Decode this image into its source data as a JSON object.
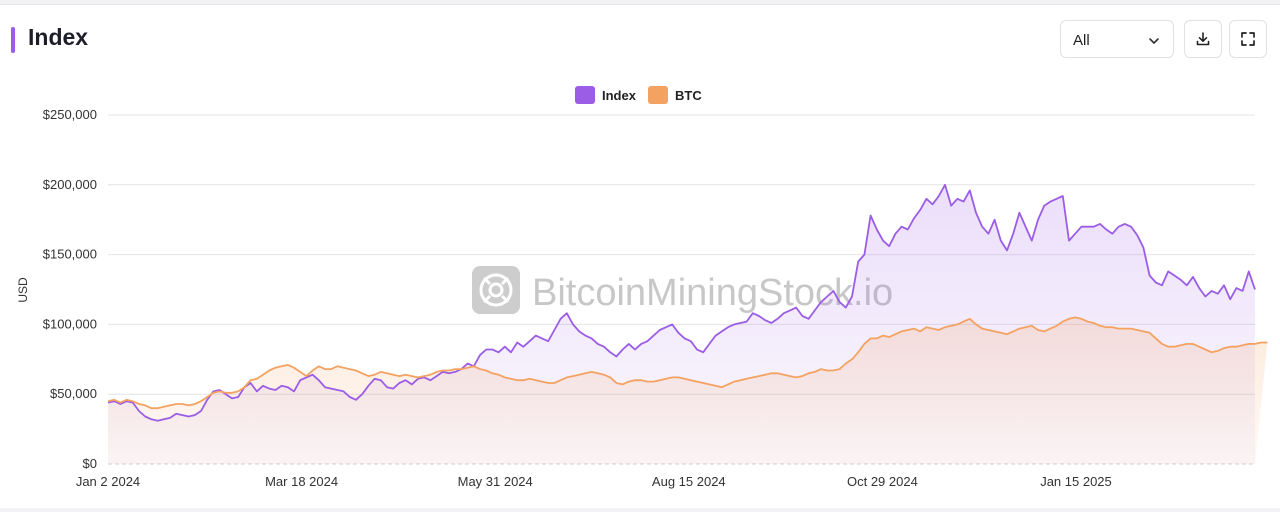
{
  "header": {
    "title": "Index",
    "range_value": "All",
    "accent": "#9b5de5",
    "download_icon": "download-icon",
    "fullscreen_icon": "fullscreen-icon",
    "dropdown_icon": "chevron-down-icon"
  },
  "watermark": {
    "text": "BitcoinMiningStock.io",
    "icon": "mining-logo-icon"
  },
  "chart_data": {
    "type": "line",
    "ylabel": "USD",
    "ylim": [
      0,
      250000
    ],
    "yticks": [
      0,
      50000,
      100000,
      150000,
      200000,
      250000
    ],
    "ytick_labels": [
      "$0",
      "$50,000",
      "$100,000",
      "$150,000",
      "$200,000",
      "$250,000"
    ],
    "xtick_labels": [
      "Jan 2 2024",
      "Mar 18 2024",
      "May 31 2024",
      "Aug 15 2024",
      "Oct 29 2024",
      "Jan 15 2025"
    ],
    "grid": true,
    "legend_position": "top-center",
    "series": [
      {
        "name": "Index",
        "color": "#9b5de5",
        "values": [
          44000,
          45000,
          43000,
          45000,
          44000,
          38000,
          34000,
          32000,
          31000,
          32000,
          33000,
          36000,
          35000,
          34000,
          35000,
          38000,
          46000,
          52000,
          53000,
          50000,
          47000,
          48000,
          55000,
          58000,
          52000,
          56000,
          54000,
          53000,
          56000,
          55000,
          52000,
          60000,
          62000,
          64000,
          60000,
          55000,
          54000,
          53000,
          52000,
          48000,
          46000,
          50000,
          56000,
          61000,
          60000,
          55000,
          54000,
          58000,
          60000,
          57000,
          61000,
          62000,
          60000,
          63000,
          66000,
          65000,
          66000,
          68000,
          72000,
          70000,
          78000,
          82000,
          82000,
          80000,
          84000,
          80000,
          87000,
          84000,
          88000,
          92000,
          90000,
          88000,
          96000,
          104000,
          108000,
          100000,
          95000,
          92000,
          90000,
          86000,
          84000,
          80000,
          77000,
          82000,
          86000,
          82000,
          86000,
          88000,
          92000,
          96000,
          98000,
          100000,
          94000,
          90000,
          88000,
          82000,
          80000,
          86000,
          92000,
          95000,
          98000,
          100000,
          101000,
          102000,
          108000,
          106000,
          103000,
          101000,
          104000,
          108000,
          110000,
          112000,
          106000,
          104000,
          110000,
          116000,
          120000,
          124000,
          116000,
          112000,
          120000,
          145000,
          150000,
          178000,
          168000,
          160000,
          156000,
          165000,
          170000,
          168000,
          176000,
          182000,
          190000,
          186000,
          192000,
          200000,
          185000,
          190000,
          188000,
          196000,
          180000,
          170000,
          165000,
          175000,
          160000,
          153000,
          165000,
          180000,
          170000,
          160000,
          175000,
          185000,
          188000,
          190000,
          192000,
          160000,
          165000,
          170000,
          170000,
          170000,
          172000,
          168000,
          165000,
          170000,
          172000,
          170000,
          164000,
          155000,
          135000,
          130000,
          128000,
          138000,
          135000,
          132000,
          128000,
          134000,
          126000,
          120000,
          124000,
          122000,
          128000,
          118000,
          126000,
          124000,
          138000,
          125000
        ]
      },
      {
        "name": "BTC",
        "color": "#f4a261",
        "values": [
          45000,
          46000,
          44000,
          46000,
          45000,
          43000,
          42000,
          40000,
          40000,
          41000,
          42000,
          43000,
          43000,
          42000,
          43000,
          45000,
          48000,
          51000,
          52000,
          51000,
          51000,
          52000,
          55000,
          60000,
          61000,
          64000,
          67000,
          69000,
          70000,
          71000,
          69000,
          66000,
          63000,
          67000,
          70000,
          68000,
          68000,
          70000,
          69000,
          68000,
          67000,
          65000,
          63000,
          64000,
          66000,
          65000,
          64000,
          63000,
          64000,
          63000,
          62000,
          63000,
          64000,
          66000,
          67000,
          67000,
          68000,
          68000,
          69000,
          70000,
          68000,
          67000,
          65000,
          64000,
          62000,
          61000,
          60000,
          60000,
          61000,
          60000,
          59000,
          58000,
          58000,
          60000,
          62000,
          63000,
          64000,
          65000,
          66000,
          65000,
          64000,
          62000,
          58000,
          57000,
          59000,
          60000,
          60000,
          59000,
          59000,
          60000,
          61000,
          62000,
          62000,
          61000,
          60000,
          59000,
          58000,
          57000,
          56000,
          55000,
          57000,
          59000,
          60000,
          61000,
          62000,
          63000,
          64000,
          65000,
          65000,
          64000,
          63000,
          62000,
          63000,
          65000,
          66000,
          68000,
          67000,
          67000,
          68000,
          72000,
          75000,
          80000,
          86000,
          90000,
          90000,
          92000,
          91000,
          93000,
          95000,
          96000,
          97000,
          95000,
          98000,
          97000,
          96000,
          98000,
          99000,
          100000,
          102000,
          104000,
          100000,
          97000,
          96000,
          95000,
          94000,
          93000,
          95000,
          97000,
          98000,
          99000,
          96000,
          95000,
          97000,
          99000,
          102000,
          104000,
          105000,
          104000,
          102000,
          101000,
          99000,
          98000,
          98000,
          97000,
          97000,
          97000,
          96000,
          95000,
          94000,
          90000,
          86000,
          84000,
          84000,
          85000,
          86000,
          86000,
          84000,
          82000,
          80000,
          81000,
          83000,
          84000,
          84000,
          85000,
          86000,
          86000,
          87000,
          87000
        ]
      }
    ]
  }
}
